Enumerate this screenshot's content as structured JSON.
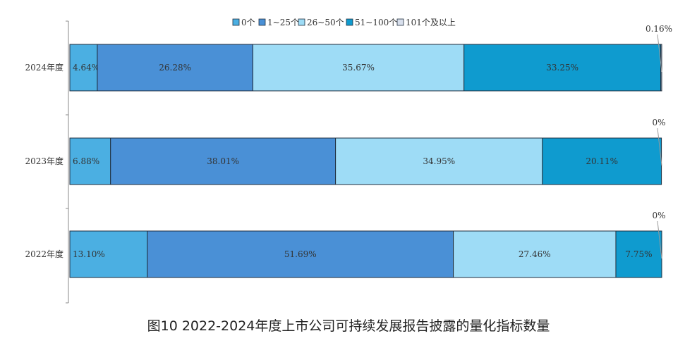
{
  "caption": "图10 2022-2024年度上市公司可持续发展报告披露的量化指标数量",
  "chart_data": {
    "type": "bar",
    "orientation": "horizontal",
    "stacked": "percent",
    "title": "",
    "categories": [
      "2024年度",
      "2023年度",
      "2022年度"
    ],
    "series": [
      {
        "name": "0个",
        "color": "#4BAFE2",
        "values": [
          4.64,
          6.88,
          13.1
        ],
        "labels": [
          "4.64%",
          "6.88%",
          "13.10%"
        ]
      },
      {
        "name": "1~25个",
        "color": "#4A90D6",
        "values": [
          26.28,
          38.01,
          51.69
        ],
        "labels": [
          "26.28%",
          "38.01%",
          "51.69%"
        ]
      },
      {
        "name": "26~50个",
        "color": "#9EDCF6",
        "values": [
          35.67,
          34.95,
          27.46
        ],
        "labels": [
          "35.67%",
          "34.95%",
          "27.46%"
        ]
      },
      {
        "name": "51~100个",
        "color": "#0F9BCF",
        "values": [
          33.25,
          20.11,
          7.75
        ],
        "labels": [
          "33.25%",
          "20.11%",
          "7.75%"
        ]
      },
      {
        "name": "101个及以上",
        "color": "#D8DFEC",
        "values": [
          0.16,
          0,
          0
        ],
        "labels": [
          "0.16%",
          "0%",
          "0%"
        ]
      }
    ],
    "legend_display": [
      "0个",
      "1~25个",
      "26~50个",
      "51~100个",
      "101个及以上"
    ],
    "legend_position": "top",
    "grid": false
  }
}
